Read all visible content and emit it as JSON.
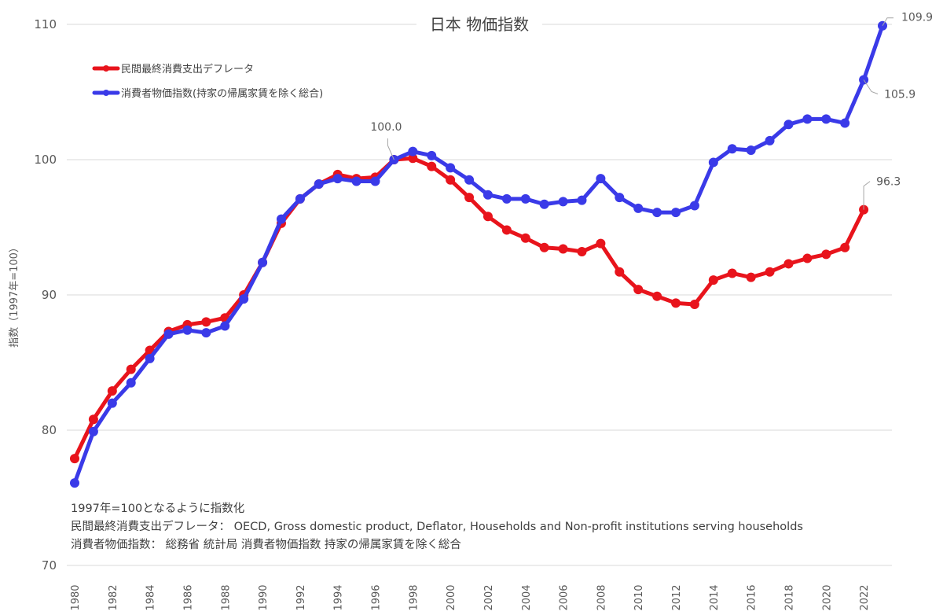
{
  "chart_data": {
    "type": "line",
    "title": "日本 物価指数",
    "ylabel": "指数（1997年=100）",
    "xlabel": "",
    "ylim": [
      70,
      110
    ],
    "yticks": [
      70,
      80,
      90,
      100,
      110
    ],
    "x": [
      1980,
      1981,
      1982,
      1983,
      1984,
      1985,
      1986,
      1987,
      1988,
      1989,
      1990,
      1991,
      1992,
      1993,
      1994,
      1995,
      1996,
      1997,
      1998,
      1999,
      2000,
      2001,
      2002,
      2003,
      2004,
      2005,
      2006,
      2007,
      2008,
      2009,
      2010,
      2011,
      2012,
      2013,
      2014,
      2015,
      2016,
      2017,
      2018,
      2019,
      2020,
      2021,
      2022,
      2023
    ],
    "xticks": [
      "1980",
      "1982",
      "1984",
      "1986",
      "1988",
      "1990",
      "1992",
      "1994",
      "1996",
      "1998",
      "2000",
      "2002",
      "2004",
      "2006",
      "2008",
      "2010",
      "2012",
      "2014",
      "2016",
      "2018",
      "2020",
      "2022"
    ],
    "series": [
      {
        "name": "民間最終消費支出デフレータ",
        "color": "#e8141c",
        "values": [
          77.9,
          80.8,
          82.9,
          84.5,
          85.9,
          87.3,
          87.8,
          88.0,
          88.3,
          90.0,
          92.4,
          95.3,
          97.1,
          98.2,
          98.9,
          98.6,
          98.7,
          100.0,
          100.1,
          99.5,
          98.5,
          97.2,
          95.8,
          94.8,
          94.2,
          93.5,
          93.4,
          93.2,
          93.8,
          91.7,
          90.4,
          89.9,
          89.4,
          89.3,
          91.1,
          91.6,
          91.3,
          91.7,
          92.3,
          92.7,
          93.0,
          93.5,
          96.3,
          null
        ]
      },
      {
        "name": "消費者物価指数(持家の帰属家賃を除く総合)",
        "color": "#3a3ae8",
        "values": [
          76.1,
          79.9,
          82.0,
          83.5,
          85.3,
          87.1,
          87.4,
          87.2,
          87.7,
          89.7,
          92.4,
          95.6,
          97.1,
          98.2,
          98.6,
          98.4,
          98.4,
          100.0,
          100.6,
          100.3,
          99.4,
          98.5,
          97.4,
          97.1,
          97.1,
          96.7,
          96.9,
          97.0,
          98.6,
          97.2,
          96.4,
          96.1,
          96.1,
          96.6,
          99.8,
          100.8,
          100.7,
          101.4,
          102.6,
          103.0,
          103.0,
          102.7,
          105.9,
          109.9
        ]
      }
    ],
    "annotations": [
      {
        "text": "100.0",
        "series": 1,
        "year": 1997
      },
      {
        "text": "96.3",
        "series": 0,
        "year": 2022
      },
      {
        "text": "109.9",
        "series": 1,
        "year": 2023
      },
      {
        "text": "105.9",
        "series": 1,
        "year": 2022
      }
    ],
    "legend": "top-left"
  },
  "notes": [
    "1997年=100となるように指数化",
    "民間最終消費支出デフレータ： OECD, Gross domestic product, Deflator, Households and Non-profit institutions serving households",
    "消費者物価指数： 総務省 統計局 消費者物価指数 持家の帰属家賃を除く総合"
  ]
}
